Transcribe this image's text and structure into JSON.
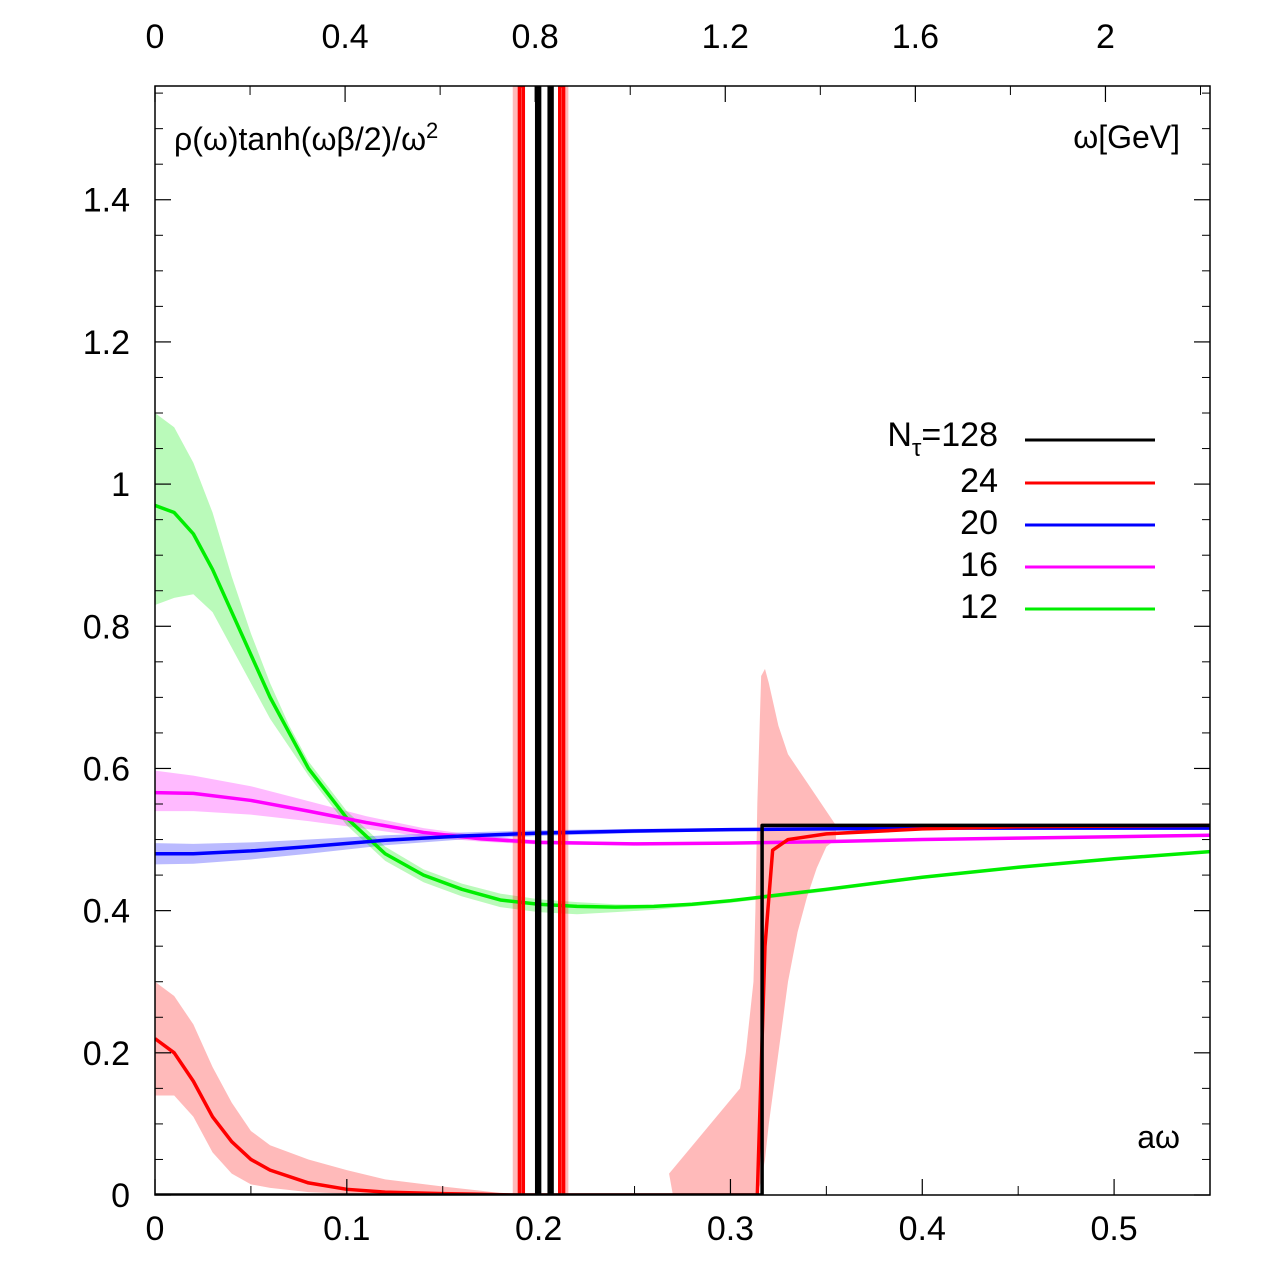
{
  "chart_data": {
    "type": "line",
    "title": "",
    "ylabel": "ρ(ω)tanh(ωβ/2)/ω²",
    "ylabel_parts": {
      "base": "ρ(ω)tanh(ωβ/2)/ω",
      "sup": "2"
    },
    "xlabel": "aω",
    "x2label": "ω[GeV]",
    "xlim": [
      0,
      0.55
    ],
    "ylim": [
      0,
      1.56
    ],
    "x2lim": [
      0,
      2.22
    ],
    "x_ticks": [
      0,
      0.1,
      0.2,
      0.3,
      0.4,
      0.5
    ],
    "x_tick_labels": [
      "0",
      "0.1",
      "0.2",
      "0.3",
      "0.4",
      "0.5"
    ],
    "x2_ticks": [
      0,
      0.4,
      0.8,
      1.2,
      1.6,
      2.0
    ],
    "x2_tick_labels": [
      "0",
      "0.4",
      "0.8",
      "1.2",
      "1.6",
      "2"
    ],
    "y_ticks": [
      0,
      0.2,
      0.4,
      0.6,
      0.8,
      1.0,
      1.2,
      1.4
    ],
    "y_tick_labels": [
      "0",
      "0.2",
      "0.4",
      "0.6",
      "0.8",
      "1",
      "1.2",
      "1.4"
    ],
    "legend_position": "right",
    "legend": [
      {
        "label_main": "N",
        "label_sub": "τ",
        "label_tail": "=128",
        "color": "#000000"
      },
      {
        "label_main": "24",
        "color": "#ff0000"
      },
      {
        "label_main": "20",
        "color": "#0000ff"
      },
      {
        "label_main": "16",
        "color": "#ff00ff"
      },
      {
        "label_main": "12",
        "color": "#00ee00"
      }
    ],
    "series": [
      {
        "name": "N_tau=128",
        "color": "#000000",
        "x": [
          0,
          0.199,
          0.199,
          0.2005,
          0.2005,
          0.2055,
          0.2055,
          0.207,
          0.207,
          0.3165,
          0.3165,
          0.55
        ],
        "y": [
          0,
          0,
          1.56,
          1.56,
          0,
          0,
          1.56,
          1.56,
          0,
          0,
          0.52,
          0.52
        ]
      },
      {
        "name": "24",
        "color": "#ff0000",
        "x": [
          0,
          0.01,
          0.02,
          0.03,
          0.04,
          0.05,
          0.06,
          0.08,
          0.1,
          0.12,
          0.15,
          0.17,
          0.188,
          0.19,
          0.19,
          0.192,
          0.192,
          0.211,
          0.211,
          0.213,
          0.213,
          0.314,
          0.318,
          0.322,
          0.33,
          0.35,
          0.4,
          0.45,
          0.55
        ],
        "y": [
          0.22,
          0.2,
          0.16,
          0.11,
          0.075,
          0.05,
          0.035,
          0.017,
          0.008,
          0.004,
          0.002,
          0.001,
          0,
          0,
          1.56,
          1.56,
          0,
          0,
          1.56,
          1.56,
          0,
          0,
          0.35,
          0.485,
          0.5,
          0.508,
          0.515,
          0.518,
          0.52
        ],
        "band_upper": [
          0.3,
          0.28,
          0.24,
          0.18,
          0.13,
          0.09,
          0.07,
          0.05,
          0.035,
          0.022,
          0.012,
          0.006,
          0
        ],
        "band_lower": [
          0.14,
          0.14,
          0.11,
          0.06,
          0.03,
          0.015,
          0.01,
          0.004,
          0.002,
          0.001,
          0,
          0,
          0
        ]
      },
      {
        "name": "20",
        "color": "#0000ff",
        "x": [
          0,
          0.02,
          0.05,
          0.08,
          0.12,
          0.16,
          0.2,
          0.25,
          0.3,
          0.35,
          0.4,
          0.45,
          0.5,
          0.55
        ],
        "y": [
          0.48,
          0.48,
          0.484,
          0.49,
          0.499,
          0.505,
          0.509,
          0.512,
          0.514,
          0.515,
          0.516,
          0.516,
          0.516,
          0.516
        ],
        "band_upper": [
          0.495,
          0.494,
          0.496,
          0.5,
          0.506,
          0.51,
          0.513,
          0.515,
          0.516,
          0.517,
          0.518,
          0.518,
          0.518,
          0.518
        ],
        "band_lower": [
          0.465,
          0.466,
          0.472,
          0.48,
          0.492,
          0.5,
          0.505,
          0.509,
          0.512,
          0.513,
          0.514,
          0.514,
          0.514,
          0.514
        ]
      },
      {
        "name": "16",
        "color": "#ff00ff",
        "x": [
          0,
          0.02,
          0.05,
          0.08,
          0.11,
          0.14,
          0.17,
          0.2,
          0.25,
          0.3,
          0.35,
          0.4,
          0.45,
          0.5,
          0.55
        ],
        "y": [
          0.566,
          0.565,
          0.555,
          0.54,
          0.524,
          0.51,
          0.501,
          0.496,
          0.494,
          0.495,
          0.497,
          0.5,
          0.502,
          0.504,
          0.506
        ],
        "band_upper": [
          0.597,
          0.59,
          0.575,
          0.554,
          0.533,
          0.516,
          0.505,
          0.499,
          0.496,
          0.497,
          0.499,
          0.502,
          0.504,
          0.506,
          0.508
        ],
        "band_lower": [
          0.54,
          0.54,
          0.535,
          0.526,
          0.515,
          0.504,
          0.497,
          0.493,
          0.492,
          0.493,
          0.495,
          0.498,
          0.5,
          0.502,
          0.504
        ]
      },
      {
        "name": "12",
        "color": "#00ee00",
        "x": [
          0,
          0.01,
          0.02,
          0.03,
          0.04,
          0.05,
          0.06,
          0.07,
          0.08,
          0.1,
          0.12,
          0.14,
          0.16,
          0.18,
          0.2,
          0.22,
          0.24,
          0.26,
          0.28,
          0.3,
          0.35,
          0.4,
          0.45,
          0.5,
          0.55
        ],
        "y": [
          0.97,
          0.96,
          0.93,
          0.88,
          0.82,
          0.76,
          0.7,
          0.65,
          0.6,
          0.53,
          0.48,
          0.45,
          0.43,
          0.415,
          0.409,
          0.406,
          0.405,
          0.406,
          0.409,
          0.414,
          0.43,
          0.447,
          0.461,
          0.473,
          0.483
        ],
        "band_upper": [
          1.1,
          1.08,
          1.03,
          0.96,
          0.87,
          0.79,
          0.72,
          0.66,
          0.61,
          0.54,
          0.49,
          0.458,
          0.438,
          0.424,
          0.416,
          0.412,
          0.409,
          0.408,
          0.41,
          0.416,
          0.432,
          0.449,
          0.463,
          0.475,
          0.485
        ],
        "band_lower": [
          0.83,
          0.84,
          0.845,
          0.82,
          0.77,
          0.72,
          0.67,
          0.63,
          0.59,
          0.52,
          0.47,
          0.44,
          0.42,
          0.405,
          0.398,
          0.395,
          0.398,
          0.401,
          0.406,
          0.411,
          0.427,
          0.445,
          0.459,
          0.471,
          0.481
        ]
      }
    ],
    "extra_bands": [
      {
        "series": "24",
        "color": "#ff0000",
        "x": [
          0.305,
          0.308,
          0.31,
          0.312,
          0.313,
          0.314,
          0.316,
          0.318,
          0.32,
          0.325,
          0.33,
          0.335,
          0.34,
          0.345,
          0.35,
          0.355,
          0.355,
          0.35,
          0.345,
          0.34,
          0.335,
          0.33,
          0.325,
          0.32,
          0.318,
          0.316,
          0.314,
          0.31,
          0.3,
          0.29,
          0.28,
          0.27,
          0.268
        ],
        "y": [
          0.15,
          0.2,
          0.25,
          0.3,
          0.4,
          0.55,
          0.73,
          0.74,
          0.72,
          0.66,
          0.62,
          0.6,
          0.58,
          0.56,
          0.54,
          0.52,
          0.5,
          0.49,
          0.46,
          0.42,
          0.37,
          0.3,
          0.2,
          0.1,
          0.05,
          0.02,
          0,
          0,
          0,
          0,
          0,
          0,
          0.03
        ]
      }
    ],
    "spike_bands": [
      {
        "x0": 0.1865,
        "x1": 0.1925
      },
      {
        "x0": 0.2105,
        "x1": 0.2155
      }
    ]
  }
}
